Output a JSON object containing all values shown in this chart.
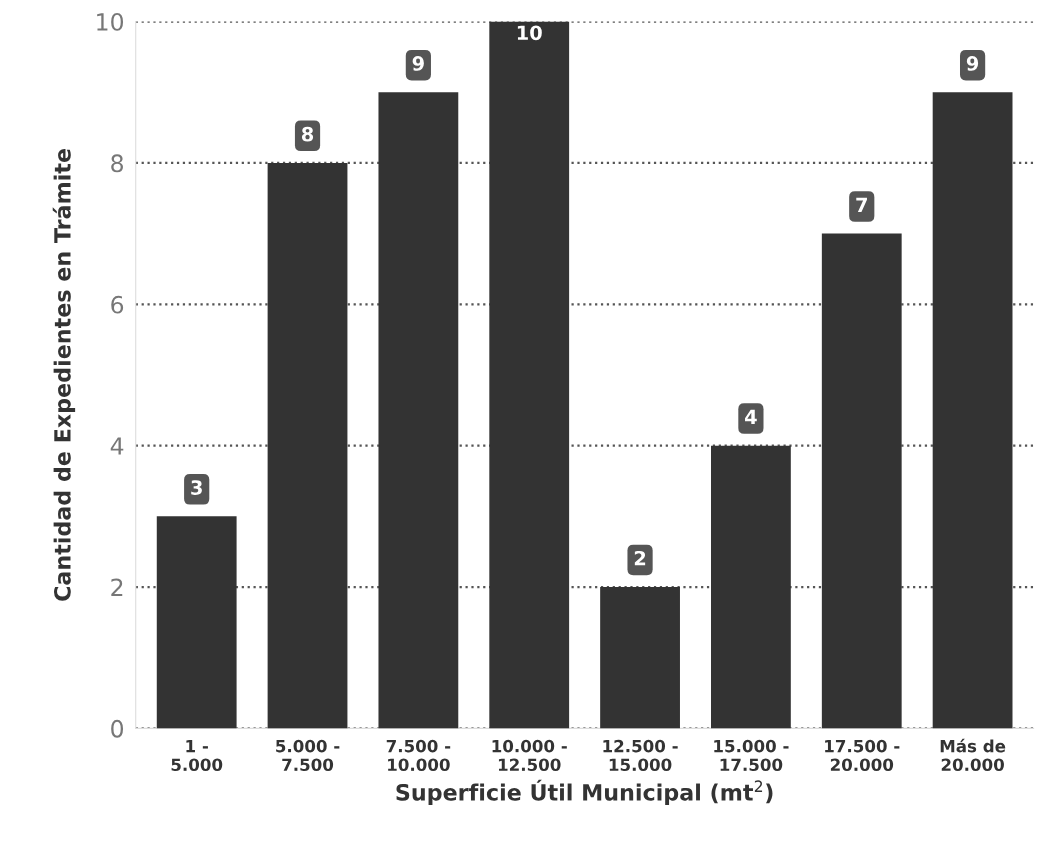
{
  "chart_data": {
    "type": "bar",
    "categories": [
      "1 -\n5.000",
      "5.000 -\n7.500",
      "7.500 -\n10.000",
      "10.000 -\n12.500",
      "12.500 -\n15.000",
      "15.000 -\n17.500",
      "17.500 -\n20.000",
      "Más de\n20.000"
    ],
    "values": [
      3,
      8,
      9,
      10,
      2,
      4,
      7,
      9
    ],
    "color": "#333333",
    "xlabel": "Superficie Útil Municipal (mt$^{2}$)",
    "ylabel": "Cantidad de Expedientes en Trámite",
    "ylim": [
      0,
      10
    ],
    "yticks": [
      0,
      2,
      4,
      6,
      8,
      10
    ],
    "grid": "y",
    "line_style": "dotted",
    "data_labels": true,
    "legend": false
  }
}
